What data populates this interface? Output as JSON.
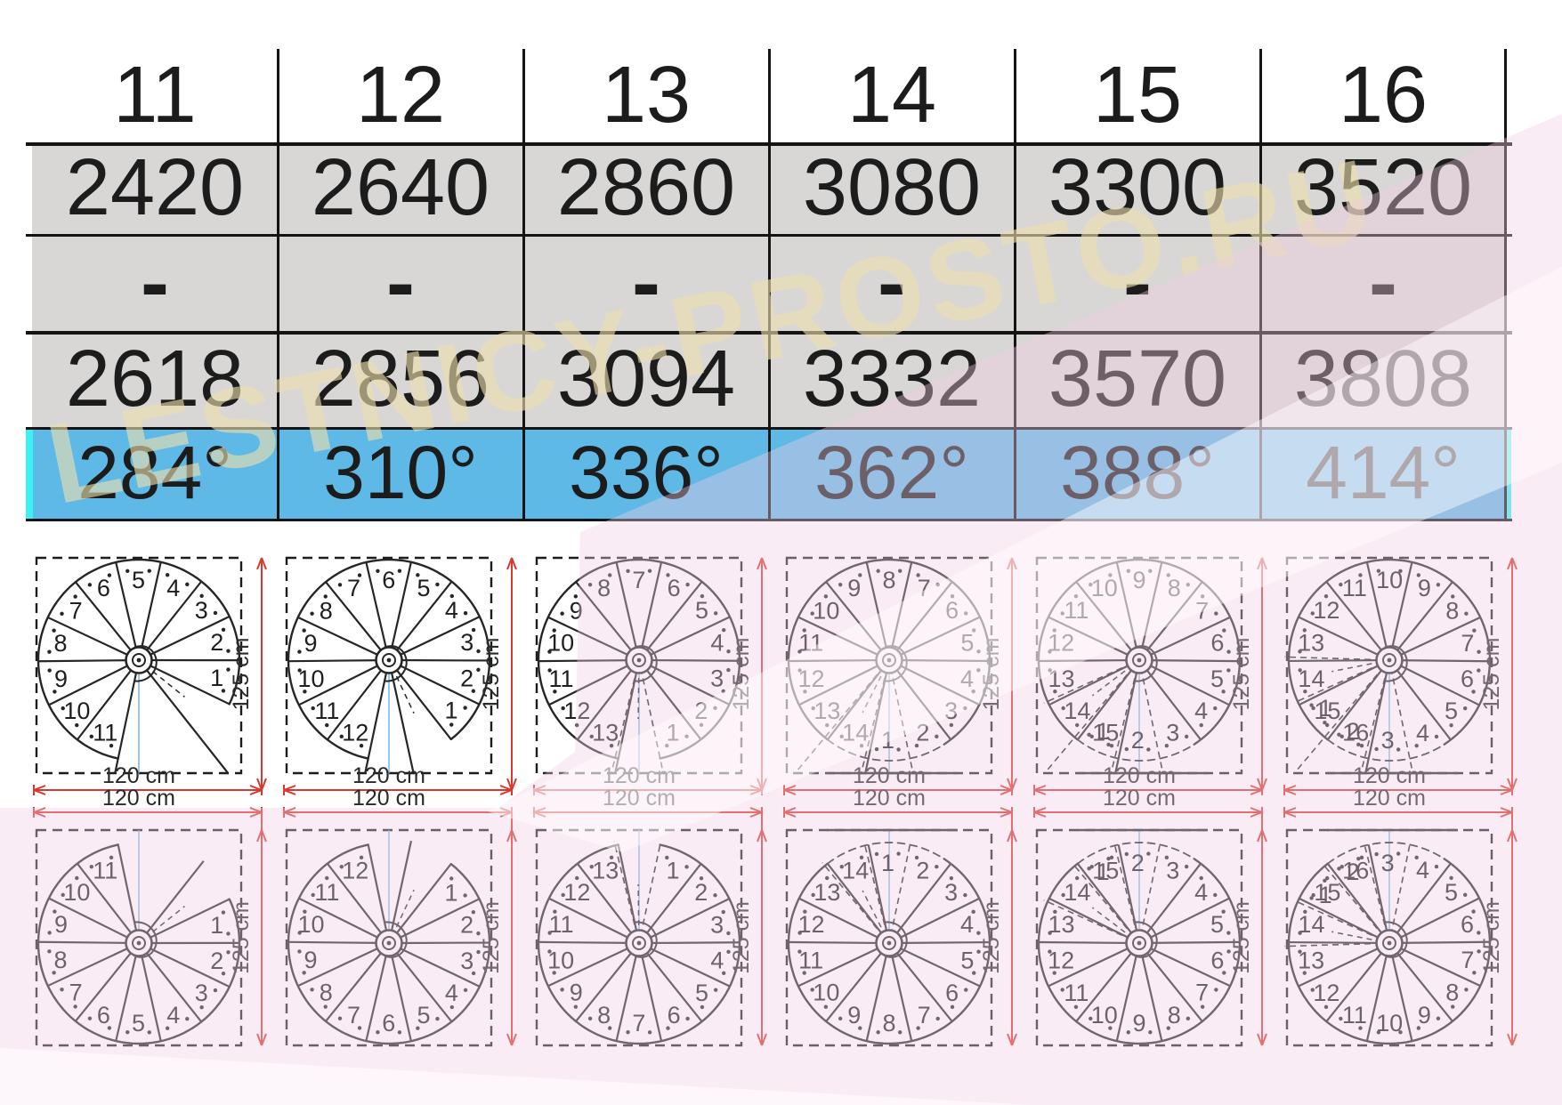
{
  "table": {
    "step_counts": [
      "11",
      "12",
      "13",
      "14",
      "15",
      "16"
    ],
    "height_min": [
      "2420",
      "2640",
      "2860",
      "3080",
      "3300",
      "3520"
    ],
    "range_separator": [
      "-",
      "-",
      "-",
      "-",
      "-",
      "-"
    ],
    "height_max": [
      "2618",
      "2856",
      "3094",
      "3332",
      "3570",
      "3808"
    ],
    "rotation_degrees": [
      "284°",
      "310°",
      "336°",
      "362°",
      "388°",
      "414°"
    ]
  },
  "diagrams": {
    "width_label": "120 cm",
    "height_label": "125 cm",
    "top_row": [
      {
        "steps": 11,
        "rotation": 284
      },
      {
        "steps": 12,
        "rotation": 310
      },
      {
        "steps": 13,
        "rotation": 336
      },
      {
        "steps": 14,
        "rotation": 362
      },
      {
        "steps": 15,
        "rotation": 388
      },
      {
        "steps": 16,
        "rotation": 414
      }
    ],
    "bottom_row": [
      {
        "steps": 11,
        "rotation": 284
      },
      {
        "steps": 12,
        "rotation": 310
      },
      {
        "steps": 13,
        "rotation": 336
      },
      {
        "steps": 14,
        "rotation": 362
      },
      {
        "steps": 15,
        "rotation": 388
      },
      {
        "steps": 16,
        "rotation": 414
      }
    ]
  },
  "watermark": {
    "text": "LESTNICY-PROSTO.RU"
  },
  "colors": {
    "ink": "#262626",
    "table_gray_bg": "#d8d7d5",
    "rotation_row_bg": "#5fb9e6",
    "cyan_accent": "#3af2f2",
    "dimension_red": "#d8382e",
    "axis_blue": "#6fb0e0",
    "pink_tint": "#f1cde1",
    "cream_watermark": "#ebdeac"
  }
}
